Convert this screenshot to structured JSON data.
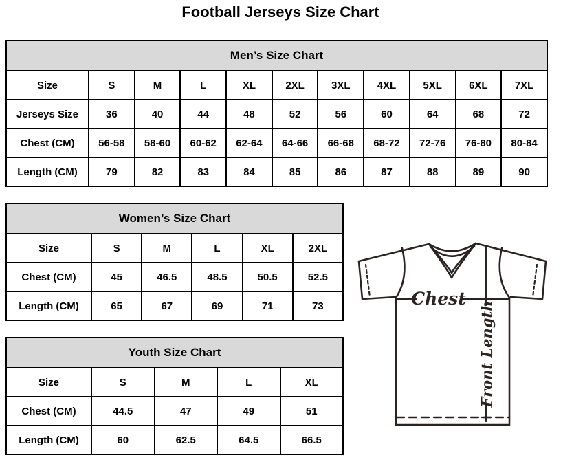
{
  "page_title": "Football Jerseys Size Chart",
  "tables": {
    "men": {
      "title": "Men’s Size Chart",
      "rows": [
        [
          "Size",
          "S",
          "M",
          "L",
          "XL",
          "2XL",
          "3XL",
          "4XL",
          "5XL",
          "6XL",
          "7XL"
        ],
        [
          "Jerseys Size",
          "36",
          "40",
          "44",
          "48",
          "52",
          "56",
          "60",
          "64",
          "68",
          "72"
        ],
        [
          "Chest (CM)",
          "56-58",
          "58-60",
          "60-62",
          "62-64",
          "64-66",
          "66-68",
          "68-72",
          "72-76",
          "76-80",
          "80-84"
        ],
        [
          "Length (CM)",
          "79",
          "82",
          "83",
          "84",
          "85",
          "86",
          "87",
          "88",
          "89",
          "90"
        ]
      ]
    },
    "women": {
      "title": "Women’s Size Chart",
      "rows": [
        [
          "Size",
          "S",
          "M",
          "L",
          "XL",
          "2XL"
        ],
        [
          "Chest (CM)",
          "45",
          "46.5",
          "48.5",
          "50.5",
          "52.5"
        ],
        [
          "Length (CM)",
          "65",
          "67",
          "69",
          "71",
          "73"
        ]
      ]
    },
    "youth": {
      "title": "Youth Size Chart",
      "rows": [
        [
          "Size",
          "S",
          "M",
          "L",
          "XL"
        ],
        [
          "Chest (CM)",
          "44.5",
          "47",
          "49",
          "51"
        ],
        [
          "Length (CM)",
          "60",
          "62.5",
          "64.5",
          "66.5"
        ]
      ]
    }
  },
  "diagram": {
    "chest_label": "Chest",
    "front_length_label": "Front Length"
  },
  "colors": {
    "table_header_bg": "#d9d9d9",
    "table_border": "#000000",
    "text": "#000000",
    "diagram_stroke": "#2b2320"
  }
}
